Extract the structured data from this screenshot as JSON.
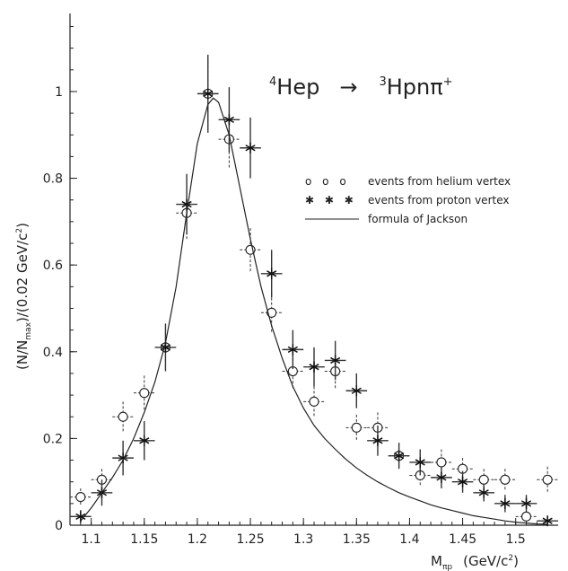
{
  "chart_data": {
    "type": "scatter",
    "title": {
      "mass_top": "4",
      "initial": "Hep",
      "arrow": "→",
      "mass_final": "3",
      "final": "Hpnπ",
      "charge": "+"
    },
    "ylabel": {
      "open": "(N/N",
      "sub": "max",
      "mid": ")/(0.02 GeV/c",
      "sup": "2",
      "close": ")"
    },
    "xlabel": {
      "sym": "M",
      "sub": "πp",
      "units_open": "(GeV/c",
      "sup": "2",
      "units_close": ")"
    },
    "xlim": [
      1.08,
      1.54
    ],
    "ylim": [
      0,
      1.18
    ],
    "x_ticks": [
      "1.1",
      "1.15",
      "1.2",
      "1.25",
      "1.3",
      "1.35",
      "1.4",
      "1.45",
      "1.5"
    ],
    "y_ticks": [
      "0",
      "0.2",
      "0.4",
      "0.6",
      "0.8",
      "1"
    ],
    "legend_position": "right, upper-middle",
    "legend": [
      {
        "marker": "o o o",
        "label": "events from helium vertex"
      },
      {
        "marker": "✱ ✱ ✱",
        "label": "events from proton vertex"
      },
      {
        "marker": "line",
        "label": "formula of Jackson"
      }
    ],
    "series": [
      {
        "name": "events from helium vertex",
        "marker": "open-circle",
        "x": [
          1.09,
          1.11,
          1.13,
          1.15,
          1.17,
          1.19,
          1.21,
          1.23,
          1.25,
          1.27,
          1.29,
          1.31,
          1.33,
          1.35,
          1.37,
          1.39,
          1.41,
          1.43,
          1.45,
          1.47,
          1.49,
          1.51,
          1.53
        ],
        "y": [
          0.065,
          0.105,
          0.25,
          0.305,
          0.41,
          0.72,
          0.995,
          0.89,
          0.635,
          0.49,
          0.355,
          0.285,
          0.355,
          0.225,
          0.225,
          0.16,
          0.115,
          0.145,
          0.13,
          0.105,
          0.105,
          0.02,
          0.105
        ],
        "yerr": [
          0.02,
          0.025,
          0.035,
          0.04,
          0.045,
          0.06,
          0.075,
          0.065,
          0.05,
          0.045,
          0.04,
          0.035,
          0.04,
          0.03,
          0.035,
          0.03,
          0.025,
          0.03,
          0.025,
          0.025,
          0.025,
          0.015,
          0.03
        ]
      },
      {
        "name": "events from proton vertex",
        "marker": "star",
        "x": [
          1.09,
          1.11,
          1.13,
          1.15,
          1.17,
          1.19,
          1.21,
          1.23,
          1.25,
          1.27,
          1.29,
          1.31,
          1.33,
          1.35,
          1.37,
          1.39,
          1.41,
          1.43,
          1.45,
          1.47,
          1.49,
          1.51,
          1.53
        ],
        "y": [
          0.02,
          0.075,
          0.155,
          0.195,
          0.41,
          0.74,
          0.995,
          0.935,
          0.87,
          0.58,
          0.405,
          0.365,
          0.38,
          0.31,
          0.195,
          0.16,
          0.145,
          0.11,
          0.1,
          0.075,
          0.05,
          0.05,
          0.01
        ],
        "yerr": [
          0.015,
          0.03,
          0.04,
          0.045,
          0.055,
          0.07,
          0.09,
          0.075,
          0.07,
          0.055,
          0.045,
          0.045,
          0.045,
          0.04,
          0.035,
          0.03,
          0.03,
          0.025,
          0.025,
          0.02,
          0.02,
          0.02,
          0.01
        ]
      },
      {
        "name": "formula of Jackson",
        "marker": "line",
        "x": [
          1.09,
          1.1,
          1.11,
          1.12,
          1.13,
          1.14,
          1.15,
          1.16,
          1.17,
          1.18,
          1.19,
          1.2,
          1.21,
          1.215,
          1.22,
          1.23,
          1.24,
          1.25,
          1.26,
          1.27,
          1.28,
          1.29,
          1.3,
          1.31,
          1.32,
          1.33,
          1.34,
          1.35,
          1.36,
          1.37,
          1.38,
          1.39,
          1.4,
          1.41,
          1.42,
          1.43,
          1.44,
          1.45,
          1.46,
          1.47,
          1.48,
          1.49,
          1.5,
          1.51,
          1.52,
          1.53
        ],
        "y": [
          0.01,
          0.04,
          0.075,
          0.11,
          0.15,
          0.2,
          0.26,
          0.33,
          0.42,
          0.55,
          0.72,
          0.88,
          0.97,
          0.985,
          0.975,
          0.9,
          0.78,
          0.66,
          0.55,
          0.46,
          0.385,
          0.32,
          0.27,
          0.23,
          0.2,
          0.175,
          0.152,
          0.132,
          0.115,
          0.1,
          0.087,
          0.075,
          0.065,
          0.056,
          0.047,
          0.04,
          0.034,
          0.028,
          0.022,
          0.018,
          0.014,
          0.01,
          0.007,
          0.005,
          0.003,
          0.002
        ]
      }
    ]
  }
}
